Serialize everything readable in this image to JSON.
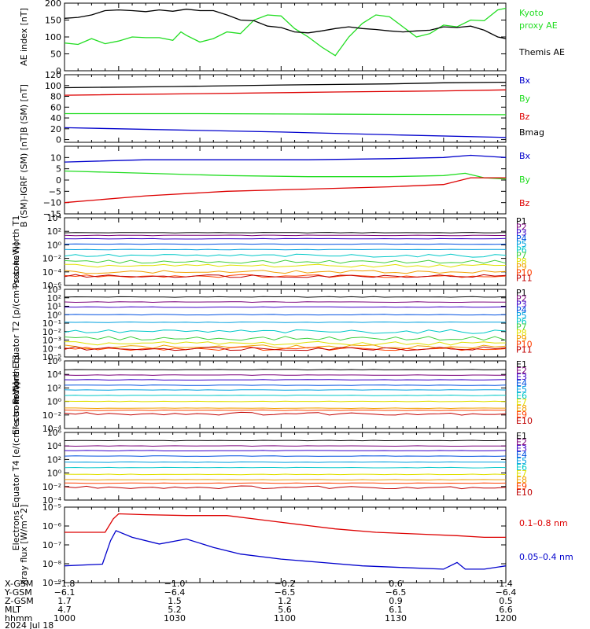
{
  "colors": {
    "black": "#000000",
    "green": "#22dd22",
    "blue": "#0000cc",
    "red": "#dd0000",
    "p1": "#000000",
    "p2": "#7a007a",
    "p3": "#3a00c8",
    "p4": "#0050e0",
    "p5": "#00a0e0",
    "p6": "#00c8c8",
    "p7": "#40d040",
    "p8": "#e0e000",
    "p9": "#f0a000",
    "p10": "#ff4000",
    "p11": "#c00000"
  },
  "chart_data": [
    {
      "type": "line",
      "ylabel": "AE index [nT]",
      "ylim": [
        0,
        200
      ],
      "yticks": [
        "0",
        "50",
        "100",
        "150",
        "200"
      ],
      "series": [
        {
          "name": "Kyoto proxy AE",
          "color": "green",
          "points": [
            [
              1000,
              82
            ],
            [
              1005,
              78
            ],
            [
              1010,
              95
            ],
            [
              1015,
              80
            ],
            [
              1020,
              88
            ],
            [
              1025,
              100
            ],
            [
              1030,
              98
            ],
            [
              1035,
              98
            ],
            [
              1040,
              90
            ],
            [
              1043,
              115
            ],
            [
              1045,
              105
            ],
            [
              1050,
              85
            ],
            [
              1055,
              95
            ],
            [
              1060,
              115
            ],
            [
              1065,
              110
            ],
            [
              1070,
              150
            ],
            [
              1075,
              165
            ],
            [
              1080,
              162
            ],
            [
              1085,
              125
            ],
            [
              1090,
              100
            ],
            [
              1095,
              70
            ],
            [
              1100,
              45
            ],
            [
              1105,
              100
            ],
            [
              1110,
              140
            ],
            [
              1115,
              165
            ],
            [
              1120,
              160
            ],
            [
              1125,
              130
            ],
            [
              1130,
              100
            ],
            [
              1135,
              110
            ],
            [
              1140,
              135
            ],
            [
              1145,
              130
            ],
            [
              1150,
              150
            ],
            [
              1155,
              148
            ],
            [
              1160,
              180
            ],
            [
              1163,
              185
            ]
          ]
        },
        {
          "name": "Themis AE",
          "color": "black",
          "points": [
            [
              1000,
              155
            ],
            [
              1005,
              158
            ],
            [
              1010,
              165
            ],
            [
              1015,
              178
            ],
            [
              1020,
              180
            ],
            [
              1025,
              178
            ],
            [
              1030,
              175
            ],
            [
              1035,
              180
            ],
            [
              1040,
              176
            ],
            [
              1045,
              182
            ],
            [
              1050,
              178
            ],
            [
              1055,
              178
            ],
            [
              1060,
              165
            ],
            [
              1065,
              150
            ],
            [
              1070,
              148
            ],
            [
              1075,
              132
            ],
            [
              1080,
              128
            ],
            [
              1085,
              115
            ],
            [
              1090,
              112
            ],
            [
              1095,
              118
            ],
            [
              1100,
              125
            ],
            [
              1105,
              130
            ],
            [
              1110,
              125
            ],
            [
              1115,
              122
            ],
            [
              1120,
              118
            ],
            [
              1125,
              115
            ],
            [
              1130,
              118
            ],
            [
              1135,
              120
            ],
            [
              1140,
              130
            ],
            [
              1145,
              128
            ],
            [
              1150,
              132
            ],
            [
              1155,
              120
            ],
            [
              1160,
              100
            ],
            [
              1163,
              95
            ]
          ]
        }
      ],
      "legend": [
        {
          "text": "Kyoto",
          "color": "green"
        },
        {
          "text": "proxy AE",
          "color": "green"
        },
        {
          "text": "Themis AE",
          "color": "black"
        }
      ]
    },
    {
      "type": "line",
      "ylabel": "B (SM) [nT]",
      "ylim": [
        -5,
        120
      ],
      "yticks": [
        "0",
        "20",
        "40",
        "60",
        "80",
        "100",
        "120"
      ],
      "series": [
        {
          "name": "Bx",
          "color": "blue",
          "points": [
            [
              1000,
              22
            ],
            [
              1040,
              18
            ],
            [
              1080,
              14
            ],
            [
              1120,
              9
            ],
            [
              1163,
              4
            ]
          ]
        },
        {
          "name": "By",
          "color": "green",
          "points": [
            [
              1000,
              48
            ],
            [
              1050,
              48
            ],
            [
              1100,
              47
            ],
            [
              1163,
              46
            ]
          ]
        },
        {
          "name": "Bz",
          "color": "red",
          "points": [
            [
              1000,
              82
            ],
            [
              1050,
              85
            ],
            [
              1100,
              88
            ],
            [
              1140,
              90
            ],
            [
              1163,
              92
            ]
          ]
        },
        {
          "name": "Bmag",
          "color": "black",
          "points": [
            [
              1000,
              96
            ],
            [
              1040,
              98
            ],
            [
              1080,
              101
            ],
            [
              1120,
              103
            ],
            [
              1140,
              105
            ],
            [
              1163,
              106
            ]
          ]
        }
      ],
      "legend": [
        {
          "text": "Bx",
          "color": "blue"
        },
        {
          "text": "By",
          "color": "green"
        },
        {
          "text": "Bz",
          "color": "red"
        },
        {
          "text": "Bmag",
          "color": "black"
        }
      ]
    },
    {
      "type": "line",
      "ylabel": "B (SM)-IGRF (SM) [nT]",
      "ylim": [
        -15,
        15
      ],
      "yticks": [
        "−15",
        "−10",
        "−5",
        "0",
        "5",
        "10"
      ],
      "series": [
        {
          "name": "Bx",
          "color": "blue",
          "points": [
            [
              1000,
              8
            ],
            [
              1030,
              9
            ],
            [
              1060,
              9
            ],
            [
              1090,
              9
            ],
            [
              1120,
              9.5
            ],
            [
              1140,
              10
            ],
            [
              1150,
              11
            ],
            [
              1163,
              10
            ]
          ]
        },
        {
          "name": "By",
          "color": "green",
          "points": [
            [
              1000,
              4
            ],
            [
              1030,
              3
            ],
            [
              1060,
              2
            ],
            [
              1090,
              1.5
            ],
            [
              1120,
              1.5
            ],
            [
              1140,
              2
            ],
            [
              1148,
              3
            ],
            [
              1155,
              1
            ],
            [
              1163,
              0.5
            ]
          ]
        },
        {
          "name": "Bz",
          "color": "red",
          "points": [
            [
              1000,
              -10
            ],
            [
              1030,
              -7
            ],
            [
              1060,
              -5
            ],
            [
              1090,
              -4
            ],
            [
              1120,
              -3
            ],
            [
              1140,
              -2
            ],
            [
              1150,
              1
            ],
            [
              1163,
              1
            ]
          ]
        }
      ],
      "legend": [
        {
          "text": "Bx",
          "color": "blue"
        },
        {
          "text": "By",
          "color": "green"
        },
        {
          "text": "Bz",
          "color": "red"
        }
      ]
    },
    {
      "type": "line",
      "log": true,
      "ylabel": "Protons North T1",
      "ylim": [
        -6,
        4
      ],
      "yticks": [
        "10⁻⁶",
        "10⁻⁴",
        "10⁻²",
        "10⁰",
        "10²",
        "10⁴"
      ],
      "channels": [
        {
          "name": "P1",
          "color": "p1",
          "level": 1.8
        },
        {
          "name": "P2",
          "color": "p2",
          "level": 1.4
        },
        {
          "name": "P3",
          "color": "p3",
          "level": 0.9
        },
        {
          "name": "P4",
          "color": "p4",
          "level": 0.1
        },
        {
          "name": "P5",
          "color": "p5",
          "level": -0.7
        },
        {
          "name": "P6",
          "color": "p6",
          "level": -1.6
        },
        {
          "name": "P7",
          "color": "p7",
          "level": -2.5
        },
        {
          "name": "P8",
          "color": "p8",
          "level": -3.1
        },
        {
          "name": "P9",
          "color": "p9",
          "level": -4.0
        },
        {
          "name": "P10",
          "color": "p10",
          "level": -4.6
        },
        {
          "name": "P11",
          "color": "p11",
          "level": -4.6
        }
      ]
    },
    {
      "type": "line",
      "log": true,
      "ylabel": "Protons Equator T2 [p/(cm²-s-sr-keV)]",
      "ylim": [
        -5,
        3
      ],
      "yticks": [
        "10⁻⁵",
        "10⁻⁴",
        "10⁻³",
        "10⁻²",
        "10⁻¹",
        "10⁰",
        "10¹",
        "10²",
        "10³"
      ],
      "channels": [
        {
          "name": "P1",
          "color": "p1",
          "level": 2.1
        },
        {
          "name": "P2",
          "color": "p2",
          "level": 1.5
        },
        {
          "name": "P3",
          "color": "p3",
          "level": 0.9
        },
        {
          "name": "P4",
          "color": "p4",
          "level": 0.0
        },
        {
          "name": "P5",
          "color": "p5",
          "level": -0.9
        },
        {
          "name": "P6",
          "color": "p6",
          "level": -2.0
        },
        {
          "name": "P7",
          "color": "p7",
          "level": -2.8
        },
        {
          "name": "P8",
          "color": "p8",
          "level": -3.4
        },
        {
          "name": "P9",
          "color": "p9",
          "level": -3.8
        },
        {
          "name": "P10",
          "color": "p10",
          "level": -4.0
        },
        {
          "name": "P11",
          "color": "p11",
          "level": -4.0
        }
      ]
    },
    {
      "type": "line",
      "log": true,
      "ylabel": "Electrons North T3",
      "ylim": [
        -4,
        6
      ],
      "yticks": [
        "10⁻⁴",
        "10⁻²",
        "10⁰",
        "10²",
        "10⁴",
        "10⁶"
      ],
      "channels": [
        {
          "name": "E1",
          "color": "p1",
          "level": 4.7
        },
        {
          "name": "E2",
          "color": "p2",
          "level": 3.9
        },
        {
          "name": "E3",
          "color": "p3",
          "level": 3.2
        },
        {
          "name": "E4",
          "color": "p4",
          "level": 2.4
        },
        {
          "name": "E5",
          "color": "p5",
          "level": 1.7
        },
        {
          "name": "E6",
          "color": "p6",
          "level": 0.9
        },
        {
          "name": "E7",
          "color": "p8",
          "level": 0.0
        },
        {
          "name": "E8",
          "color": "p9",
          "level": -1.0
        },
        {
          "name": "E9",
          "color": "p10",
          "level": -1.3
        },
        {
          "name": "E10",
          "color": "p11",
          "level": -1.8
        }
      ]
    },
    {
      "type": "line",
      "log": true,
      "ylabel": "Electrons Equator T4 [e/(cm²-s-sr-keV)]",
      "ylim": [
        -4,
        6
      ],
      "yticks": [
        "10⁻⁴",
        "10⁻²",
        "10⁰",
        "10²",
        "10⁴",
        "10⁶"
      ],
      "channels": [
        {
          "name": "E1",
          "color": "p1",
          "level": 4.8
        },
        {
          "name": "E2",
          "color": "p2",
          "level": 4.0
        },
        {
          "name": "E3",
          "color": "p3",
          "level": 3.3
        },
        {
          "name": "E4",
          "color": "p4",
          "level": 2.5
        },
        {
          "name": "E5",
          "color": "p5",
          "level": 1.6
        },
        {
          "name": "E6",
          "color": "p6",
          "level": 0.8
        },
        {
          "name": "E7",
          "color": "p8",
          "level": -0.2
        },
        {
          "name": "E8",
          "color": "p9",
          "level": -1.0
        },
        {
          "name": "E9",
          "color": "p10",
          "level": -1.5
        },
        {
          "name": "E10",
          "color": "p11",
          "level": -2.1
        }
      ]
    },
    {
      "type": "line",
      "log": true,
      "ylabel": "Xray flux [W/m^2]",
      "ylim": [
        -9,
        -4.5
      ],
      "yticks": [
        "10⁻⁹",
        "10⁻⁸",
        "10⁻⁷",
        "10⁻⁶",
        "10⁻⁵"
      ],
      "series": [
        {
          "name": "0.1–0.8 nm",
          "color": "red",
          "points": [
            [
              1000,
              -6.0
            ],
            [
              1015,
              -6.0
            ],
            [
              1018,
              -5.2
            ],
            [
              1020,
              -4.9
            ],
            [
              1030,
              -4.95
            ],
            [
              1045,
              -5.0
            ],
            [
              1060,
              -5.0
            ],
            [
              1075,
              -5.3
            ],
            [
              1090,
              -5.6
            ],
            [
              1100,
              -5.8
            ],
            [
              1115,
              -6.0
            ],
            [
              1130,
              -6.1
            ],
            [
              1145,
              -6.2
            ],
            [
              1155,
              -6.3
            ],
            [
              1163,
              -6.3
            ]
          ]
        },
        {
          "name": "0.05–0.4 nm",
          "color": "blue",
          "points": [
            [
              1000,
              -8.0
            ],
            [
              1014,
              -7.9
            ],
            [
              1017,
              -6.5
            ],
            [
              1019,
              -5.9
            ],
            [
              1025,
              -6.3
            ],
            [
              1035,
              -6.7
            ],
            [
              1045,
              -6.4
            ],
            [
              1055,
              -6.9
            ],
            [
              1065,
              -7.3
            ],
            [
              1080,
              -7.6
            ],
            [
              1095,
              -7.8
            ],
            [
              1110,
              -8.0
            ],
            [
              1125,
              -8.1
            ],
            [
              1140,
              -8.2
            ],
            [
              1145,
              -7.8
            ],
            [
              1148,
              -8.2
            ],
            [
              1155,
              -8.2
            ],
            [
              1163,
              -8.0
            ]
          ]
        }
      ],
      "legend": [
        {
          "text": "0.1–0.8 nm",
          "color": "red"
        },
        {
          "text": "0.05–0.4 nm",
          "color": "blue"
        }
      ]
    }
  ],
  "ephemeris": {
    "rows": [
      {
        "label": "X-GSM",
        "values": [
          "−1.8",
          "−1.0",
          "−0.2",
          "0.6",
          "1.4"
        ]
      },
      {
        "label": "Y-GSM",
        "values": [
          "−6.1",
          "−6.4",
          "−6.5",
          "−6.5",
          "−6.4"
        ]
      },
      {
        "label": "Z-GSM",
        "values": [
          "1.7",
          "1.5",
          "1.2",
          "0.9",
          "0.5"
        ]
      },
      {
        "label": "MLT",
        "values": [
          "4.7",
          "5.2",
          "5.6",
          "6.1",
          "6.6"
        ]
      },
      {
        "label": "hhmm",
        "values": [
          "1000",
          "1030",
          "1100",
          "1130",
          "1200"
        ]
      }
    ],
    "date": "2024 Jul 18"
  }
}
